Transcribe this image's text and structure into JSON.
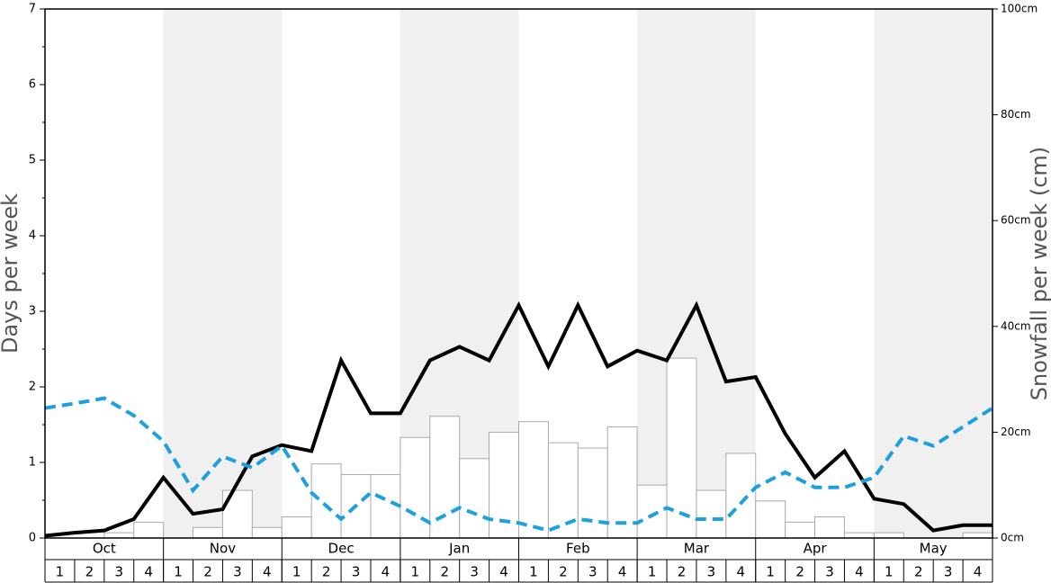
{
  "chart_data": {
    "type": "bar",
    "y_label": "Days per week",
    "y2_label": "Snowfall per week (cm)",
    "months": [
      "Oct",
      "Nov",
      "Dec",
      "Jan",
      "Feb",
      "Mar",
      "Apr",
      "May"
    ],
    "categories": [
      "1",
      "2",
      "3",
      "4",
      "1",
      "2",
      "3",
      "4",
      "1",
      "2",
      "3",
      "4",
      "1",
      "2",
      "3",
      "4",
      "1",
      "2",
      "3",
      "4",
      "1",
      "2",
      "3",
      "4",
      "1",
      "2",
      "3",
      "4",
      "1",
      "2",
      "3",
      "4"
    ],
    "x": [
      0,
      1,
      2,
      3,
      4,
      5,
      6,
      7,
      8,
      9,
      10,
      11,
      12,
      13,
      14,
      15,
      16,
      17,
      18,
      19,
      20,
      21,
      22,
      23,
      24,
      25,
      26,
      27,
      28,
      29,
      30,
      31,
      32
    ],
    "xlim": [
      0,
      32
    ],
    "ylim": [
      0,
      7
    ],
    "yticks": [
      0,
      1,
      2,
      3,
      4,
      5,
      6,
      7
    ],
    "y2lim": [
      0,
      100
    ],
    "y2ticks": [
      {
        "value": 0,
        "label": "0cm"
      },
      {
        "value": 20,
        "label": "20cm"
      },
      {
        "value": 40,
        "label": "40cm"
      },
      {
        "value": 60,
        "label": "60cm"
      },
      {
        "value": 80,
        "label": "80cm"
      },
      {
        "value": 100,
        "label": "100cm"
      }
    ],
    "series": [
      {
        "type": "bar",
        "axis": "y2",
        "color": "#ffffff",
        "values": [
          0,
          0,
          1,
          3,
          0,
          2,
          9,
          2,
          4,
          14,
          12,
          12,
          19,
          23,
          15,
          20,
          22,
          18,
          17,
          21,
          10,
          34,
          9,
          16,
          7,
          3,
          4,
          1,
          1,
          0,
          0,
          1
        ]
      },
      {
        "type": "line",
        "color": "#000000",
        "dashed": false,
        "values": [
          0.03,
          0.07,
          0.1,
          0.25,
          0.8,
          0.32,
          0.38,
          1.08,
          1.23,
          1.15,
          2.35,
          1.65,
          1.65,
          2.35,
          2.53,
          2.35,
          3.08,
          2.27,
          3.08,
          2.27,
          2.48,
          2.35,
          3.08,
          2.07,
          2.13,
          1.38,
          0.8,
          1.15,
          0.52,
          0.45,
          0.1,
          0.17,
          0.17
        ]
      },
      {
        "type": "line",
        "color": "#1ca0e0",
        "dashed": true,
        "values": [
          1.72,
          1.78,
          1.85,
          1.62,
          1.28,
          0.63,
          1.08,
          0.93,
          1.22,
          0.6,
          0.25,
          0.6,
          0.42,
          0.2,
          0.4,
          0.25,
          0.2,
          0.1,
          0.25,
          0.2,
          0.2,
          0.4,
          0.25,
          0.25,
          0.67,
          0.87,
          0.67,
          0.67,
          0.8,
          1.35,
          1.22,
          1.47,
          1.72
        ]
      }
    ]
  }
}
